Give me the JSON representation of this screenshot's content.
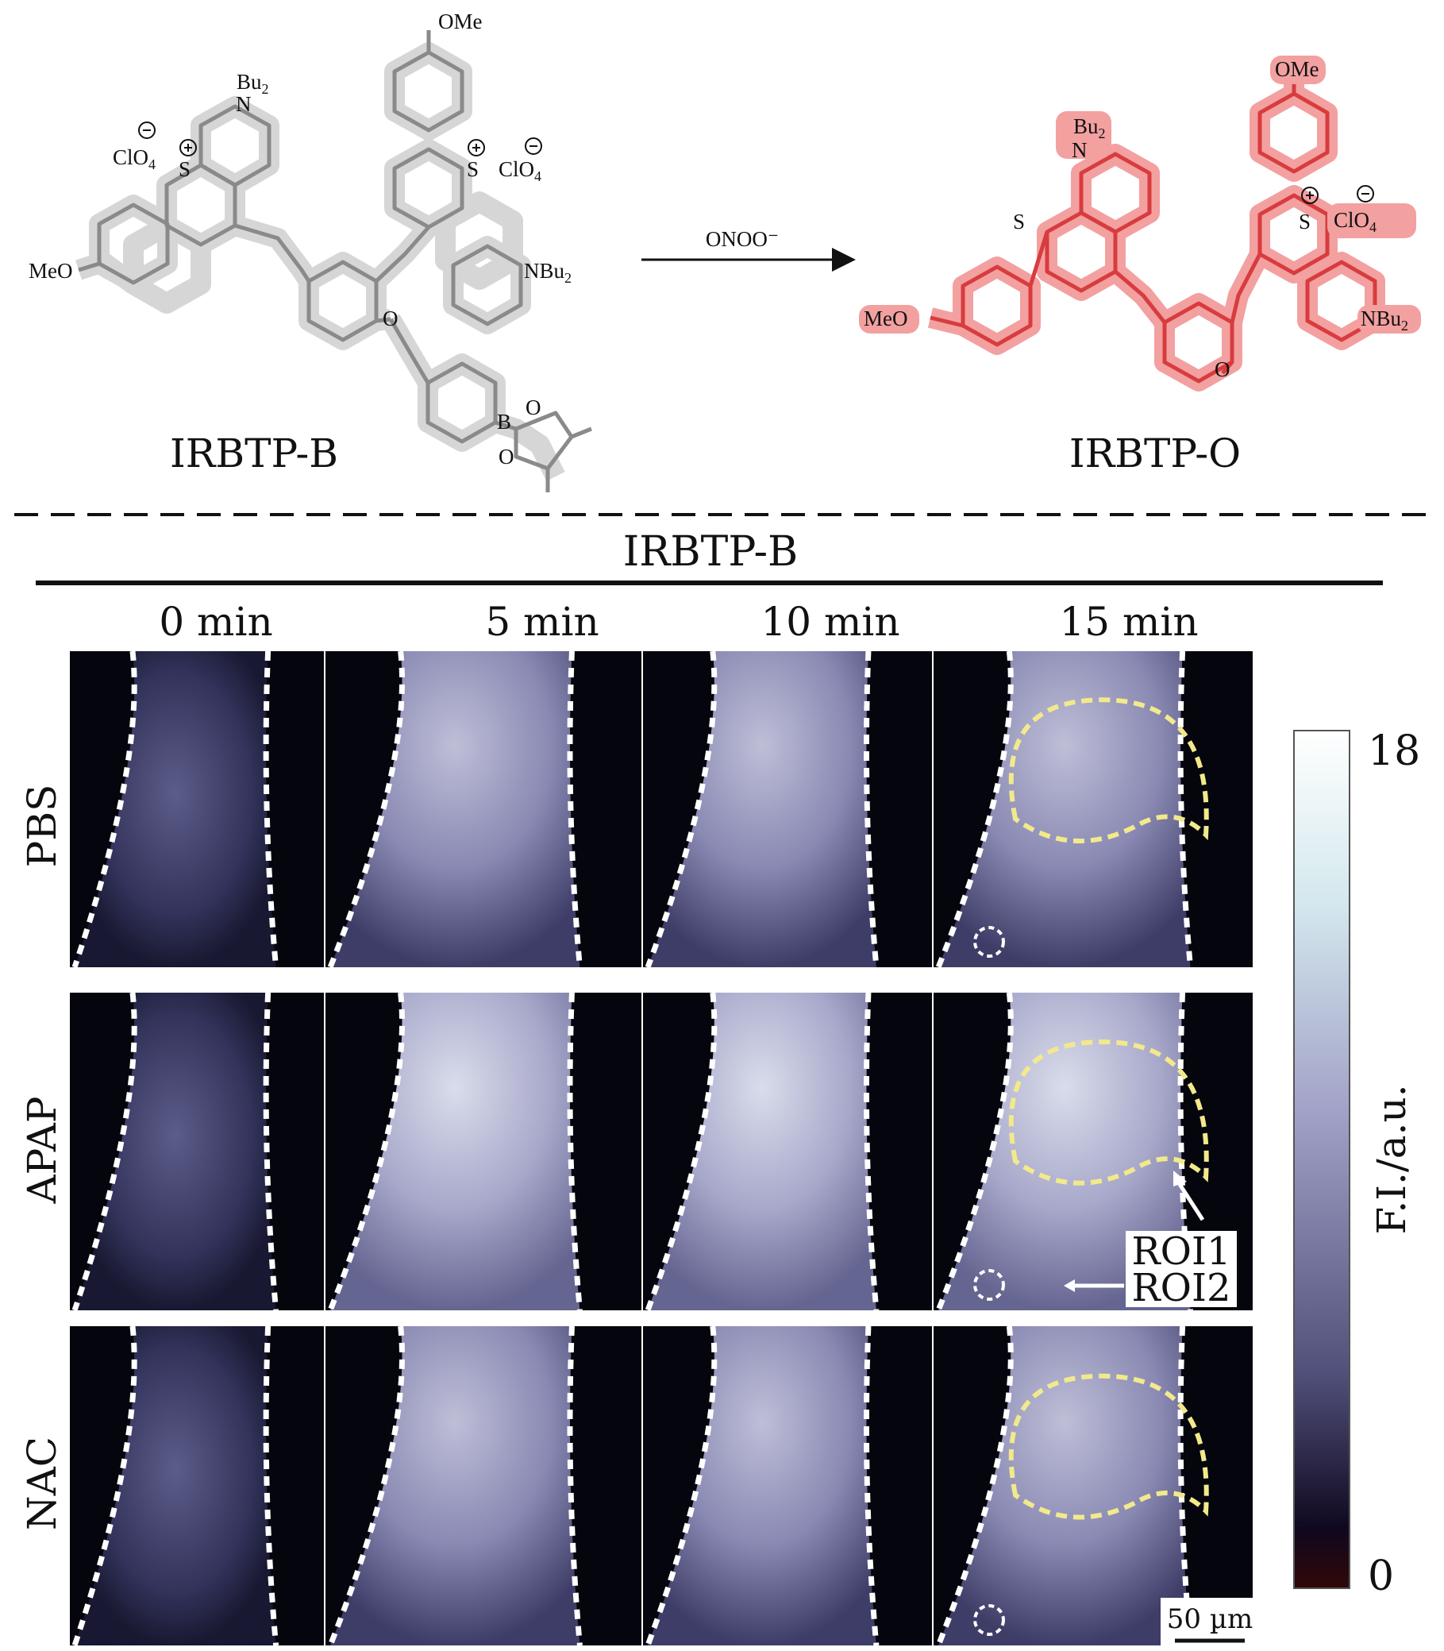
{
  "scheme": {
    "reactant": {
      "name": "IRBTP-B",
      "groups": {
        "bu2": "Bu",
        "bu2_sub": "2",
        "n": "N",
        "clo4_left": "ClO",
        "clo4_sub": "4",
        "s_left": "S",
        "ome_top": "OMe",
        "s_right": "S",
        "clo4_right": "ClO",
        "meo": "MeO",
        "nbu2": "NBu",
        "nbu2_sub": "2",
        "o_ether": "O",
        "b": "B",
        "o_boron1": "O",
        "o_boron2": "O"
      }
    },
    "reagent": "ONOO⁻",
    "product": {
      "name": "IRBTP-O",
      "groups": {
        "ome": "OMe",
        "bu2": "Bu",
        "bu2_sub": "2",
        "n": "N",
        "s_left": "S",
        "s_right": "S",
        "clo4": "ClO",
        "clo4_sub": "4",
        "meo": "MeO",
        "nbu2": "NBu",
        "nbu2_sub": "2",
        "o": "O"
      }
    }
  },
  "panel": {
    "title": "IRBTP-B",
    "columns": [
      "0 min",
      "5 min",
      "10 min",
      "15 min"
    ],
    "rows": [
      "PBS",
      "APAP",
      "NAC"
    ],
    "roi_labels": [
      "ROI1",
      "ROI2"
    ],
    "scale_bar": "50 µm",
    "colorbar": {
      "max": "18",
      "min": "0",
      "label": "F.I./a.u."
    },
    "colors": {
      "tissue": "#b8b8d6",
      "background": "#05050d",
      "roi": "#f2e98c",
      "product": "#e8484a"
    }
  }
}
